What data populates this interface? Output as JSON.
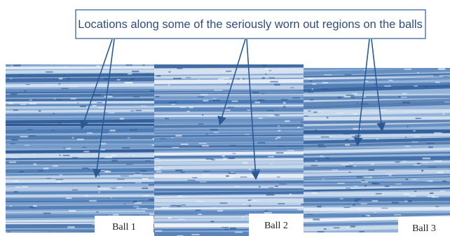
{
  "callout": {
    "text": "Locations along some of the seriously worn out regions on the balls"
  },
  "panels": [
    {
      "label": "Ball 1"
    },
    {
      "label": "Ball 2"
    },
    {
      "label": "Ball 3"
    }
  ]
}
